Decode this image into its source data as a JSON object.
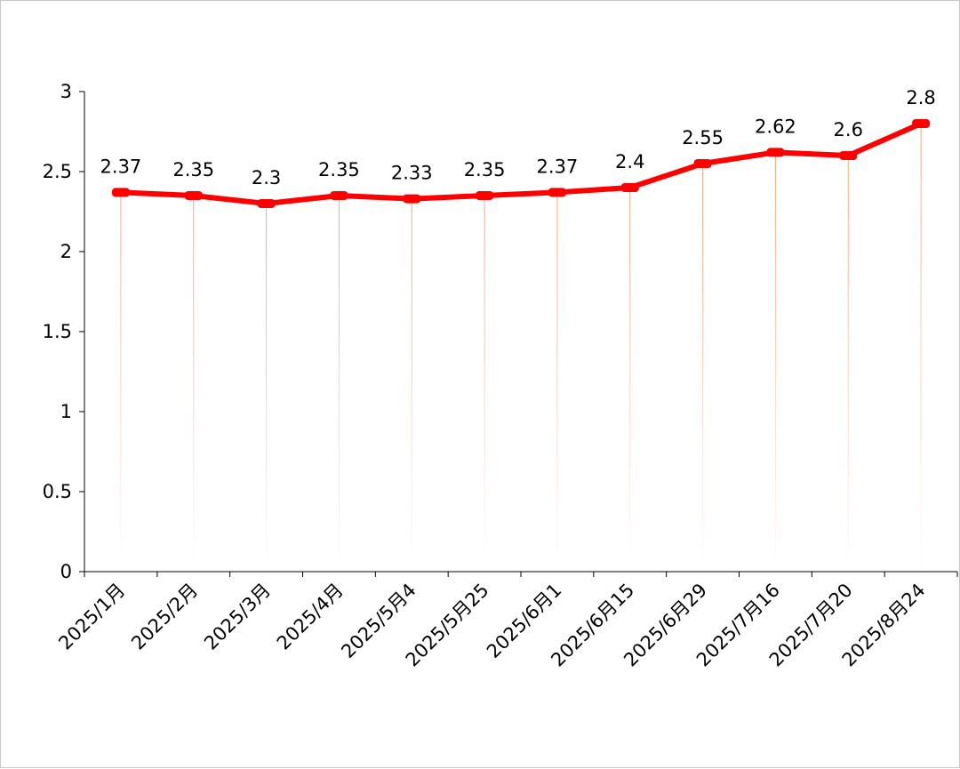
{
  "chart_data": {
    "type": "line",
    "title": "",
    "xlabel": "",
    "ylabel": "",
    "categories": [
      "2025/1月",
      "2025/2月",
      "2025/3月",
      "2025/4月",
      "2025/5月4",
      "2025/5月25",
      "2025/6月1",
      "2025/6月15",
      "2025/6月29",
      "2025/7月16",
      "2025/7月20",
      "2025/8月24"
    ],
    "values": [
      2.37,
      2.35,
      2.3,
      2.35,
      2.33,
      2.35,
      2.37,
      2.4,
      2.55,
      2.62,
      2.6,
      2.8
    ],
    "data_labels": [
      "2.37",
      "2.35",
      "2.3",
      "2.35",
      "2.33",
      "2.35",
      "2.37",
      "2.4",
      "2.55",
      "2.62",
      "2.6",
      "2.8"
    ],
    "ylim": [
      0,
      3
    ],
    "y_ticks": [
      0,
      0.5,
      1,
      1.5,
      2,
      2.5,
      3
    ],
    "y_tick_labels": [
      "0",
      "0.5",
      "1",
      "1.5",
      "2",
      "2.5",
      "3"
    ],
    "grid": false,
    "drop_lines": true,
    "line_color": "#ff0000",
    "drop_line_color": "#f4a27a",
    "axis_color": "#000000"
  }
}
